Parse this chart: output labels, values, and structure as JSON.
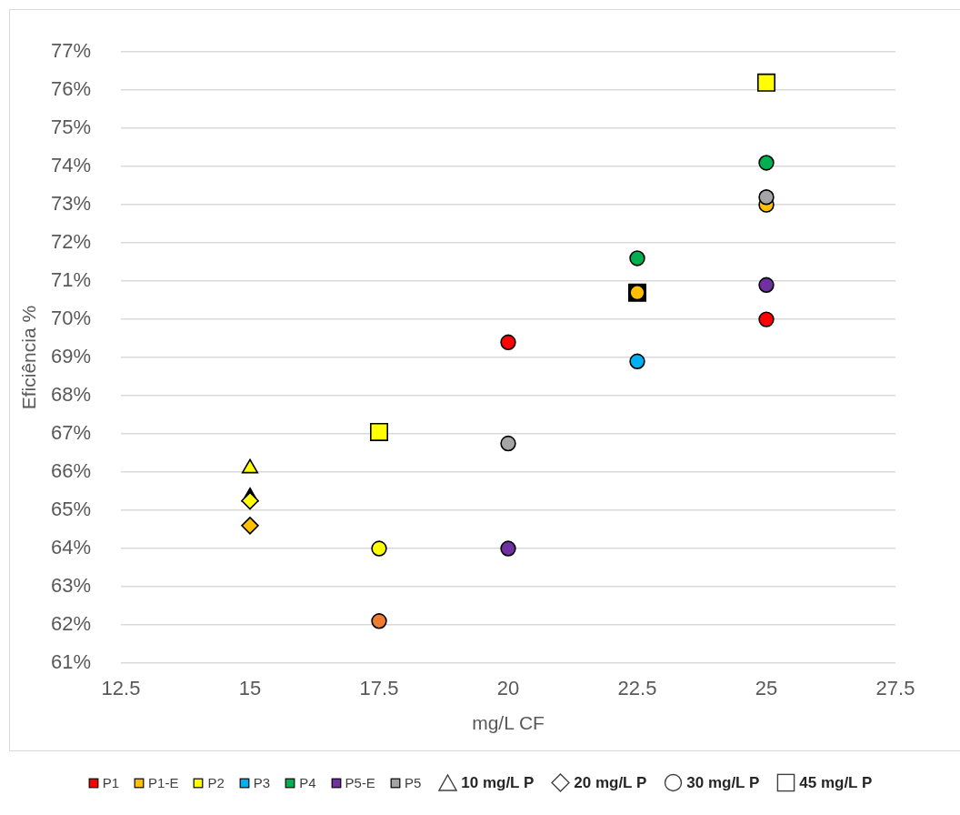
{
  "chart_data": {
    "type": "scatter",
    "xlabel": "mg/L CF",
    "ylabel": "Eficiência %",
    "xlim": [
      12.5,
      27.5
    ],
    "xticks": [
      12.5,
      15,
      17.5,
      20,
      22.5,
      25,
      27.5
    ],
    "ylim": [
      61,
      77
    ],
    "yticks": [
      {
        "value": 61,
        "label": "61%"
      },
      {
        "value": 62,
        "label": "62%"
      },
      {
        "value": 63,
        "label": "63%"
      },
      {
        "value": 64,
        "label": "64%"
      },
      {
        "value": 65,
        "label": "65%"
      },
      {
        "value": 66,
        "label": "66%"
      },
      {
        "value": 67,
        "label": "67%"
      },
      {
        "value": 68,
        "label": "68%"
      },
      {
        "value": 69,
        "label": "69%"
      },
      {
        "value": 70,
        "label": "70%"
      },
      {
        "value": 71,
        "label": "71%"
      },
      {
        "value": 72,
        "label": "72%"
      },
      {
        "value": 73,
        "label": "73%"
      },
      {
        "value": 74,
        "label": "74%"
      },
      {
        "value": 75,
        "label": "75%"
      },
      {
        "value": 76,
        "label": "76%"
      },
      {
        "value": 77,
        "label": "77%"
      }
    ],
    "grid": "y",
    "legend": "bottom",
    "marker": "circle",
    "annotations": [
      "10 mg/L P",
      "20 mg/L P",
      "30 mg/L P",
      "45 mg/L P"
    ],
    "series": [
      {
        "marker": "triangle",
        "x": [
          15,
          15
        ],
        "values": [
          65.35,
          66.1
        ],
        "colors": [
          "#000000",
          "#ffff00"
        ]
      },
      {
        "marker": "square",
        "x": [
          22.5,
          17.5,
          25
        ],
        "values": [
          70.7,
          67.05,
          76.2
        ],
        "colors": [
          "#000000",
          "#ffff00",
          "#ffff00"
        ]
      },
      {
        "marker": "diamond",
        "x": [
          15,
          15
        ],
        "values": [
          65.25,
          64.6
        ],
        "colors": [
          "#ffff00",
          "#ffc000"
        ]
      },
      {
        "x": [
          17.5
        ],
        "values": [
          62.1
        ],
        "color": "#ed7d31"
      },
      {
        "name": "P1",
        "color": "#ff0000",
        "x": [
          20,
          25
        ],
        "values": [
          69.4,
          70.0
        ]
      },
      {
        "name": "P1-E",
        "color": "#ffc000",
        "x": [
          22.5,
          25
        ],
        "values": [
          70.7,
          73.0
        ]
      },
      {
        "name": "P2",
        "color": "#ffff00",
        "x": [
          17.5
        ],
        "values": [
          64.0
        ]
      },
      {
        "name": "P3",
        "color": "#00b0f0",
        "x": [
          22.5
        ],
        "values": [
          68.9
        ]
      },
      {
        "name": "P4",
        "color": "#00b050",
        "x": [
          22.5,
          25
        ],
        "values": [
          71.6,
          74.1
        ]
      },
      {
        "name": "P5-E",
        "color": "#7030a0",
        "x": [
          20,
          25
        ],
        "values": [
          64.0,
          70.9
        ]
      },
      {
        "name": "P5",
        "color": "#a5a5a5",
        "x": [
          20,
          25
        ],
        "values": [
          66.75,
          73.2
        ]
      }
    ]
  }
}
